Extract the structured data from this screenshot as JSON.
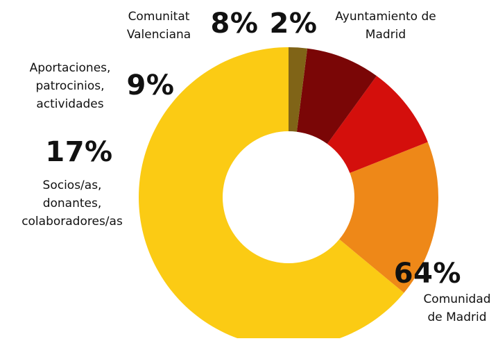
{
  "chart_data": {
    "type": "pie",
    "donut": true,
    "title": "",
    "legend": "none",
    "slices": [
      {
        "label_lines": [
          "Comunidad",
          "de Madrid"
        ],
        "value": 64,
        "value_label": "64%",
        "color": "#FBCB14"
      },
      {
        "label_lines": [
          "Socios/as,",
          "donantes,",
          "colaboradores/as"
        ],
        "value": 17,
        "value_label": "17%",
        "color": "#EE8818"
      },
      {
        "label_lines": [
          "Aportaciones,",
          "patrocinios,",
          "actividades"
        ],
        "value": 9,
        "value_label": "9%",
        "color": "#D40F0C"
      },
      {
        "label_lines": [
          "Comunitat",
          "Valenciana"
        ],
        "value": 8,
        "value_label": "8%",
        "color": "#7A0606"
      },
      {
        "label_lines": [
          "Ayuntamiento de",
          "Madrid"
        ],
        "value": 2,
        "value_label": "2%",
        "color": "#806417"
      }
    ]
  }
}
